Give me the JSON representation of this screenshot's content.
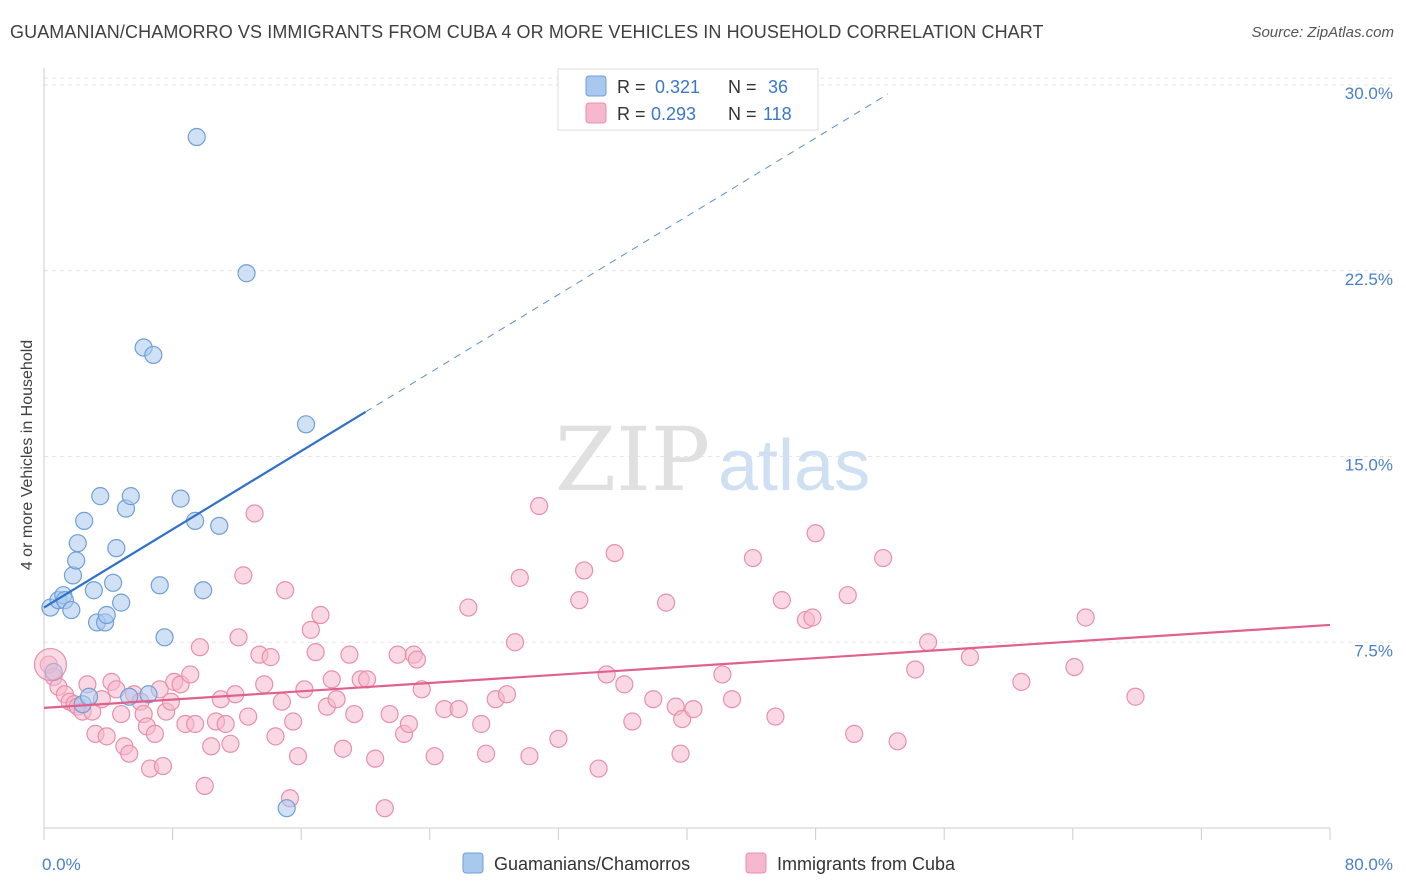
{
  "title": "GUAMANIAN/CHAMORRO VS IMMIGRANTS FROM CUBA 4 OR MORE VEHICLES IN HOUSEHOLD CORRELATION CHART",
  "source": "Source: ZipAtlas.com",
  "watermark": {
    "zip": "ZIP",
    "atlas": "atlas"
  },
  "colors": {
    "blue_fill": "#a9c8ee",
    "blue_stroke": "#6f9fd8",
    "blue_line": "#2f72c8",
    "pink_fill": "#f5b8cc",
    "pink_stroke": "#e890aa",
    "pink_line": "#e0608e",
    "tick_text": "#4a80c8",
    "grid": "#e6e6e6"
  },
  "legend": {
    "rows": [
      {
        "r_label": "R =",
        "r_value": "0.321",
        "n_label": "N =",
        "n_value": "36"
      },
      {
        "r_label": "R =",
        "r_value": "0.293",
        "n_label": "N =",
        "n_value": "118"
      }
    ]
  },
  "chart_data": {
    "type": "scatter",
    "title": "GUAMANIAN/CHAMORRO VS IMMIGRANTS FROM CUBA 4 OR MORE VEHICLES IN HOUSEHOLD CORRELATION CHART",
    "xlabel": "",
    "ylabel": "4 or more Vehicles in Household",
    "xlim": [
      0,
      80
    ],
    "ylim": [
      0,
      31.5
    ],
    "x_tick_labels": [
      "0.0%",
      "80.0%"
    ],
    "y_ticks": [
      7.5,
      15.0,
      22.5,
      30.0
    ],
    "y_tick_labels": [
      "7.5%",
      "15.0%",
      "22.5%",
      "30.0%"
    ],
    "grid": true,
    "series": [
      {
        "name": "Guamanians/Chamorros",
        "color": "blue",
        "R": 0.321,
        "N": 36,
        "trend": {
          "x0": 0,
          "y0": 8.9,
          "x1": 20,
          "y1": 16.8,
          "dash_x_end": 52.5
        },
        "points": [
          [
            0.4,
            8.9
          ],
          [
            0.9,
            9.2
          ],
          [
            1.2,
            9.4
          ],
          [
            1.3,
            9.2
          ],
          [
            1.8,
            10.2
          ],
          [
            1.7,
            8.8
          ],
          [
            2.0,
            10.8
          ],
          [
            2.1,
            11.5
          ],
          [
            2.5,
            12.4
          ],
          [
            3.1,
            9.6
          ],
          [
            3.5,
            13.4
          ],
          [
            3.3,
            8.3
          ],
          [
            3.8,
            8.3
          ],
          [
            3.9,
            8.6
          ],
          [
            4.3,
            9.9
          ],
          [
            4.5,
            11.3
          ],
          [
            4.8,
            9.1
          ],
          [
            5.1,
            12.9
          ],
          [
            5.4,
            13.4
          ],
          [
            6.2,
            19.4
          ],
          [
            6.8,
            19.1
          ],
          [
            7.2,
            9.8
          ],
          [
            7.5,
            7.7
          ],
          [
            8.5,
            13.3
          ],
          [
            9.4,
            12.4
          ],
          [
            9.5,
            27.9
          ],
          [
            9.9,
            9.6
          ],
          [
            10.9,
            12.2
          ],
          [
            12.6,
            22.4
          ],
          [
            15.1,
            0.8
          ],
          [
            16.3,
            16.3
          ],
          [
            0.6,
            6.3
          ],
          [
            2.4,
            5.0
          ],
          [
            2.8,
            5.3
          ],
          [
            5.3,
            5.3
          ],
          [
            6.5,
            5.4
          ]
        ]
      },
      {
        "name": "Immigrants from Cuba",
        "color": "pink",
        "R": 0.293,
        "N": 118,
        "trend": {
          "x0": 0,
          "y0": 4.85,
          "x1": 80,
          "y1": 8.2
        },
        "points": [
          [
            0.3,
            6.6
          ],
          [
            0.6,
            6.1
          ],
          [
            0.9,
            5.7
          ],
          [
            1.3,
            5.4
          ],
          [
            1.6,
            5.1
          ],
          [
            1.9,
            5.0
          ],
          [
            2.1,
            4.9
          ],
          [
            2.4,
            4.7
          ],
          [
            2.7,
            5.8
          ],
          [
            3.0,
            4.7
          ],
          [
            3.2,
            3.8
          ],
          [
            3.6,
            5.2
          ],
          [
            3.9,
            3.7
          ],
          [
            4.2,
            5.9
          ],
          [
            4.5,
            5.6
          ],
          [
            4.8,
            4.6
          ],
          [
            5.0,
            3.3
          ],
          [
            5.3,
            3.0
          ],
          [
            5.6,
            5.4
          ],
          [
            6.0,
            5.1
          ],
          [
            6.2,
            4.6
          ],
          [
            6.4,
            4.1
          ],
          [
            6.6,
            2.4
          ],
          [
            6.9,
            3.8
          ],
          [
            7.2,
            5.6
          ],
          [
            7.4,
            2.5
          ],
          [
            7.6,
            4.7
          ],
          [
            7.9,
            5.1
          ],
          [
            8.1,
            5.9
          ],
          [
            8.5,
            5.8
          ],
          [
            8.8,
            4.2
          ],
          [
            9.1,
            6.2
          ],
          [
            9.4,
            4.2
          ],
          [
            9.7,
            7.3
          ],
          [
            10.0,
            1.7
          ],
          [
            10.4,
            3.3
          ],
          [
            10.7,
            4.3
          ],
          [
            11.0,
            5.2
          ],
          [
            11.3,
            4.2
          ],
          [
            11.6,
            3.4
          ],
          [
            11.9,
            5.4
          ],
          [
            12.1,
            7.7
          ],
          [
            12.4,
            10.2
          ],
          [
            12.7,
            4.5
          ],
          [
            13.1,
            12.7
          ],
          [
            13.4,
            7.0
          ],
          [
            13.7,
            5.8
          ],
          [
            14.1,
            6.9
          ],
          [
            14.4,
            3.7
          ],
          [
            14.8,
            5.1
          ],
          [
            15.0,
            9.6
          ],
          [
            15.3,
            1.2
          ],
          [
            15.5,
            4.3
          ],
          [
            15.8,
            2.9
          ],
          [
            16.2,
            5.6
          ],
          [
            16.6,
            8.0
          ],
          [
            16.9,
            7.1
          ],
          [
            17.2,
            8.6
          ],
          [
            17.6,
            4.9
          ],
          [
            17.9,
            6.0
          ],
          [
            18.2,
            5.2
          ],
          [
            18.6,
            3.2
          ],
          [
            19.0,
            7.0
          ],
          [
            19.3,
            4.6
          ],
          [
            19.7,
            6.0
          ],
          [
            20.1,
            6.0
          ],
          [
            20.6,
            2.8
          ],
          [
            21.2,
            0.8
          ],
          [
            21.5,
            4.6
          ],
          [
            22.0,
            7.0
          ],
          [
            22.4,
            3.8
          ],
          [
            22.7,
            4.2
          ],
          [
            23.0,
            7.0
          ],
          [
            23.2,
            6.8
          ],
          [
            23.5,
            5.6
          ],
          [
            24.3,
            2.9
          ],
          [
            24.9,
            4.8
          ],
          [
            25.8,
            4.8
          ],
          [
            26.4,
            8.9
          ],
          [
            27.2,
            4.2
          ],
          [
            27.5,
            3.0
          ],
          [
            28.1,
            5.2
          ],
          [
            28.8,
            5.4
          ],
          [
            29.3,
            7.5
          ],
          [
            29.6,
            10.1
          ],
          [
            30.2,
            2.9
          ],
          [
            30.8,
            13.0
          ],
          [
            32.0,
            3.6
          ],
          [
            33.3,
            9.2
          ],
          [
            33.6,
            10.4
          ],
          [
            34.5,
            2.4
          ],
          [
            35.0,
            6.2
          ],
          [
            35.5,
            11.1
          ],
          [
            36.1,
            5.8
          ],
          [
            36.6,
            4.3
          ],
          [
            37.9,
            5.2
          ],
          [
            38.7,
            9.1
          ],
          [
            39.3,
            4.9
          ],
          [
            39.6,
            3.0
          ],
          [
            39.7,
            4.4
          ],
          [
            40.4,
            4.8
          ],
          [
            42.2,
            6.2
          ],
          [
            42.8,
            5.2
          ],
          [
            44.1,
            10.9
          ],
          [
            45.5,
            4.5
          ],
          [
            45.9,
            9.2
          ],
          [
            47.4,
            8.4
          ],
          [
            47.8,
            8.5
          ],
          [
            48.0,
            11.9
          ],
          [
            50.0,
            9.4
          ],
          [
            50.4,
            3.8
          ],
          [
            52.2,
            10.9
          ],
          [
            53.1,
            3.5
          ],
          [
            54.2,
            6.4
          ],
          [
            55.0,
            7.5
          ],
          [
            57.6,
            6.9
          ],
          [
            60.8,
            5.9
          ],
          [
            64.1,
            6.5
          ],
          [
            64.8,
            8.5
          ],
          [
            67.9,
            5.3
          ]
        ]
      }
    ],
    "legend_labels": [
      "Guamanians/Chamorros",
      "Immigrants from Cuba"
    ]
  }
}
